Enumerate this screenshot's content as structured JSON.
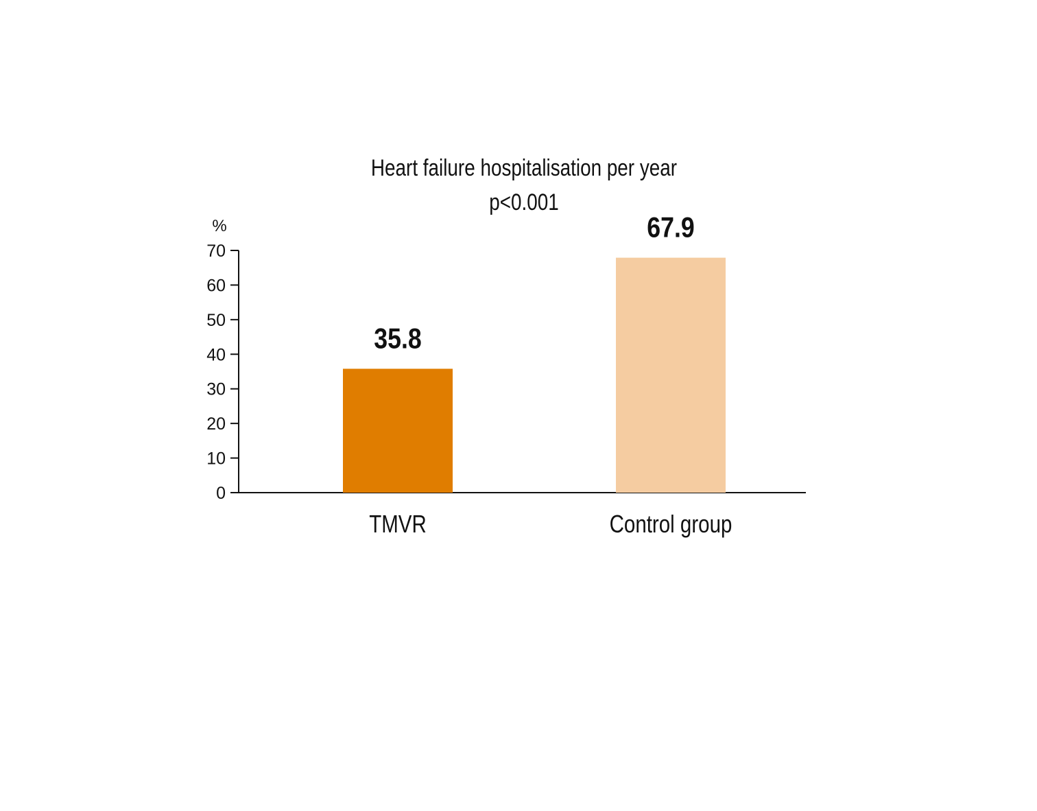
{
  "chart_data": {
    "type": "bar",
    "title": "Heart failure hospitalisation per year",
    "subtitle": "p<0.001",
    "ylabel": "%",
    "xlabel": "",
    "ylim": [
      0,
      70
    ],
    "yticks": [
      0,
      10,
      20,
      30,
      40,
      50,
      60,
      70
    ],
    "categories": [
      "TMVR",
      "Control group"
    ],
    "values": [
      35.8,
      67.9
    ],
    "data_labels": [
      "35.8",
      "67.9"
    ],
    "colors": [
      "#E07D00",
      "#F5CCA1"
    ],
    "grid": false
  }
}
